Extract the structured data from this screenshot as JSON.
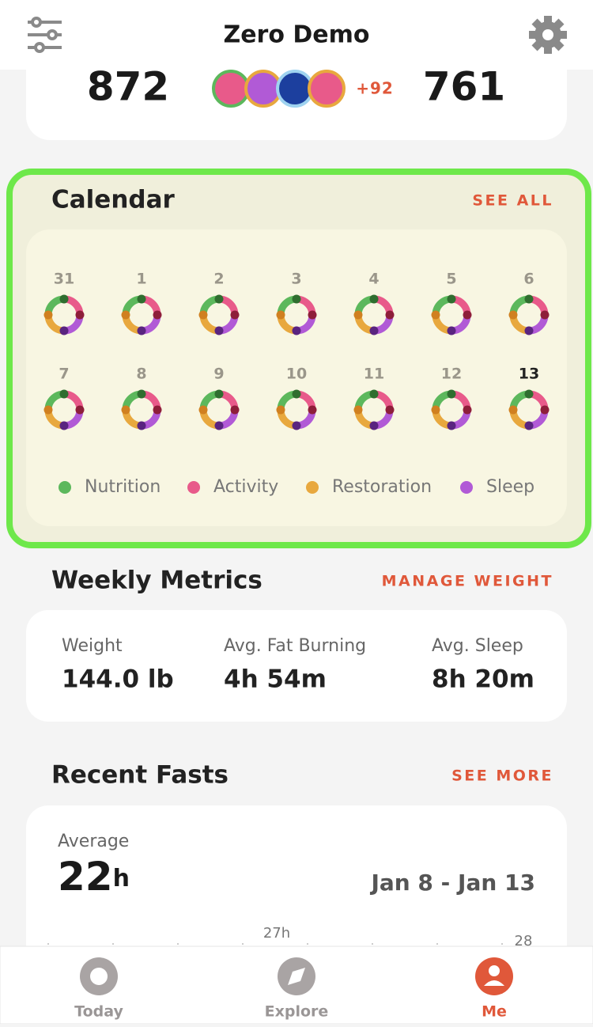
{
  "header": {
    "title": "Zero Demo"
  },
  "stats": {
    "left_value": "872",
    "badges_more": "+92",
    "right_value": "761"
  },
  "calendar": {
    "title": "Calendar",
    "action": "SEE ALL",
    "days": [
      "31",
      "1",
      "2",
      "3",
      "4",
      "5",
      "6",
      "7",
      "8",
      "9",
      "10",
      "11",
      "12",
      "13"
    ],
    "legend": [
      "Nutrition",
      "Activity",
      "Restoration",
      "Sleep"
    ]
  },
  "weekly_metrics": {
    "title": "Weekly Metrics",
    "action": "MANAGE WEIGHT",
    "items": [
      {
        "label": "Weight",
        "value": "144.0 lb"
      },
      {
        "label": "Avg. Fat Burning",
        "value": "4h 54m"
      },
      {
        "label": "Avg. Sleep",
        "value": "8h 20m"
      }
    ]
  },
  "recent_fasts": {
    "title": "Recent Fasts",
    "action": "SEE MORE",
    "average_label": "Average",
    "average_value": "22",
    "average_unit": "h",
    "date_range": "Jan 8 - Jan 13",
    "chart_labels": [
      "27h",
      "28"
    ]
  },
  "tabs": [
    "Today",
    "Explore",
    "Me"
  ]
}
